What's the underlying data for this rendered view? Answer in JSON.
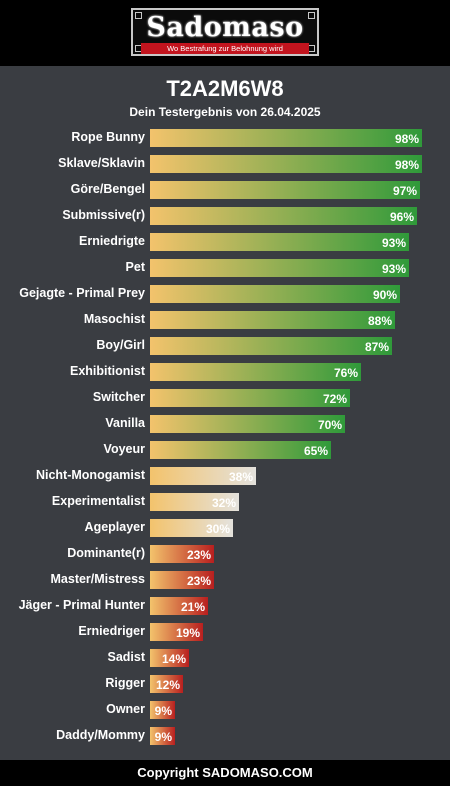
{
  "header": {
    "logo_text": "Sadomaso",
    "logo_tagline": "Wo Bestrafung zur Belohnung wird"
  },
  "result": {
    "code": "T2A2M6W8",
    "subtitle": "Dein Testergebnis von 26.04.2025"
  },
  "footer": {
    "copyright": "Copyright SADOMASO.COM"
  },
  "colors": {
    "background": "#3a3d42",
    "bar_start": "#f3c36c",
    "bar_high": "#2f9a3a",
    "bar_mid": "#e4e2dd",
    "bar_low": "#b81f1f"
  },
  "chart_data": {
    "type": "bar",
    "orientation": "horizontal",
    "categories": [
      "Rope Bunny",
      "Sklave/Sklavin",
      "Göre/Bengel",
      "Submissive(r)",
      "Erniedrigte",
      "Pet",
      "Gejagte - Primal Prey",
      "Masochist",
      "Boy/Girl",
      "Exhibitionist",
      "Switcher",
      "Vanilla",
      "Voyeur",
      "Nicht-Monogamist",
      "Experimentalist",
      "Ageplayer",
      "Dominante(r)",
      "Master/Mistress",
      "Jäger - Primal Hunter",
      "Erniedriger",
      "Sadist",
      "Rigger",
      "Owner",
      "Daddy/Mommy"
    ],
    "values": [
      98,
      98,
      97,
      96,
      93,
      93,
      90,
      88,
      87,
      76,
      72,
      70,
      65,
      38,
      32,
      30,
      23,
      23,
      21,
      19,
      14,
      12,
      9,
      9
    ],
    "labels": [
      "98%",
      "98%",
      "97%",
      "96%",
      "93%",
      "93%",
      "90%",
      "88%",
      "87%",
      "76%",
      "72%",
      "70%",
      "65%",
      "38%",
      "32%",
      "30%",
      "23%",
      "23%",
      "21%",
      "19%",
      "14%",
      "12%",
      "9%",
      "9%"
    ],
    "xlim": [
      0,
      100
    ],
    "grid": false,
    "legend": false
  }
}
